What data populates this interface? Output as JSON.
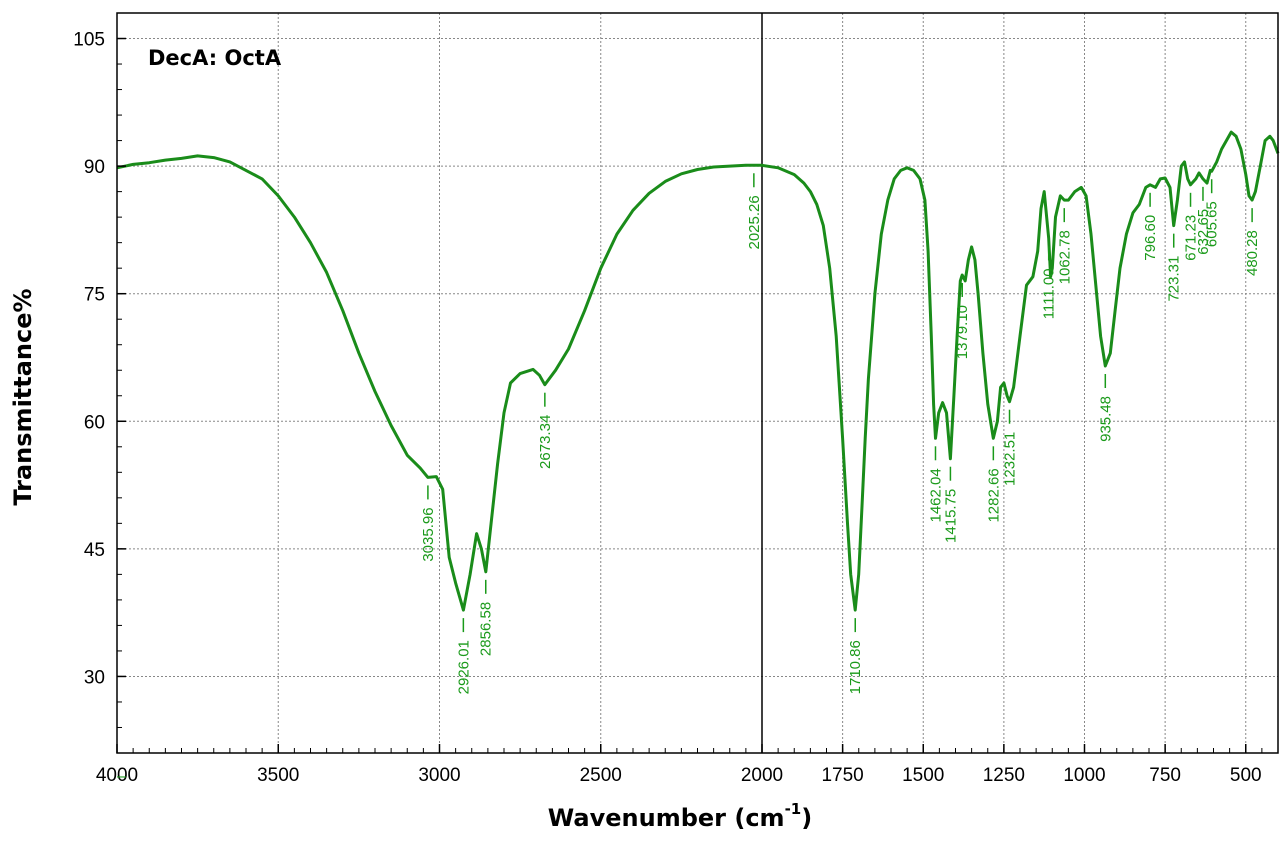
{
  "chart_data": {
    "type": "line",
    "title": "DecA: OctA",
    "xlabel": "Wavenumber (cm",
    "xlabel_sup": "-1",
    "xlabel_tail": ")",
    "ylabel": "Transmittance%",
    "xlim": [
      4000,
      400
    ],
    "ylim": [
      21,
      108
    ],
    "x_reversed": true,
    "x_ticks": [
      "4000",
      "3500",
      "3000",
      "2500",
      "2000",
      "1750",
      "1500",
      "1250",
      "1000",
      "750",
      "500"
    ],
    "y_ticks": [
      "30",
      "45",
      "60",
      "75",
      "90",
      "105"
    ],
    "grid": true,
    "divider_at": 2000,
    "line_color": "#1a8c1a",
    "label_color": "#1a9a1a",
    "legend_marker": "–",
    "series": [
      {
        "points": [
          [
            4000,
            89.8
          ],
          [
            3950,
            90.2
          ],
          [
            3900,
            90.4
          ],
          [
            3850,
            90.7
          ],
          [
            3800,
            90.9
          ],
          [
            3750,
            91.2
          ],
          [
            3700,
            91.0
          ],
          [
            3650,
            90.5
          ],
          [
            3600,
            89.5
          ],
          [
            3550,
            88.5
          ],
          [
            3500,
            86.5
          ],
          [
            3450,
            84.0
          ],
          [
            3400,
            81.0
          ],
          [
            3350,
            77.5
          ],
          [
            3300,
            73.0
          ],
          [
            3250,
            68.0
          ],
          [
            3200,
            63.5
          ],
          [
            3150,
            59.5
          ],
          [
            3100,
            56.0
          ],
          [
            3060,
            54.5
          ],
          [
            3035.96,
            53.4
          ],
          [
            3010,
            53.5
          ],
          [
            2990,
            52.0
          ],
          [
            2970,
            44.0
          ],
          [
            2950,
            41.0
          ],
          [
            2926.01,
            37.8
          ],
          [
            2905,
            42.0
          ],
          [
            2885,
            46.8
          ],
          [
            2870,
            45.0
          ],
          [
            2856.58,
            42.3
          ],
          [
            2840,
            48.0
          ],
          [
            2820,
            55.0
          ],
          [
            2800,
            61.0
          ],
          [
            2780,
            64.5
          ],
          [
            2750,
            65.6
          ],
          [
            2710,
            66.1
          ],
          [
            2690,
            65.4
          ],
          [
            2673.34,
            64.3
          ],
          [
            2640,
            66.0
          ],
          [
            2600,
            68.5
          ],
          [
            2550,
            73.0
          ],
          [
            2500,
            78.0
          ],
          [
            2450,
            82.0
          ],
          [
            2400,
            84.8
          ],
          [
            2350,
            86.8
          ],
          [
            2300,
            88.2
          ],
          [
            2250,
            89.1
          ],
          [
            2200,
            89.6
          ],
          [
            2150,
            89.9
          ],
          [
            2100,
            90.0
          ],
          [
            2050,
            90.1
          ],
          [
            2025.26,
            90.1
          ],
          [
            2000,
            90.1
          ],
          [
            1950,
            89.8
          ],
          [
            1900,
            89.0
          ],
          [
            1870,
            88.0
          ],
          [
            1850,
            87.0
          ],
          [
            1830,
            85.5
          ],
          [
            1810,
            83.0
          ],
          [
            1790,
            78.0
          ],
          [
            1770,
            70.0
          ],
          [
            1750,
            58.0
          ],
          [
            1735,
            48.0
          ],
          [
            1725,
            42.0
          ],
          [
            1710.86,
            37.8
          ],
          [
            1700,
            42.0
          ],
          [
            1690,
            50.0
          ],
          [
            1680,
            58.0
          ],
          [
            1670,
            65.0
          ],
          [
            1650,
            75.0
          ],
          [
            1630,
            82.0
          ],
          [
            1610,
            86.0
          ],
          [
            1590,
            88.5
          ],
          [
            1570,
            89.5
          ],
          [
            1550,
            89.8
          ],
          [
            1530,
            89.5
          ],
          [
            1510,
            88.5
          ],
          [
            1495,
            86.0
          ],
          [
            1485,
            80.0
          ],
          [
            1475,
            70.0
          ],
          [
            1468,
            62.0
          ],
          [
            1462.04,
            58.0
          ],
          [
            1452,
            61.0
          ],
          [
            1440,
            62.2
          ],
          [
            1428,
            61.0
          ],
          [
            1415.75,
            55.6
          ],
          [
            1405,
            63.0
          ],
          [
            1395,
            70.0
          ],
          [
            1385,
            76.5
          ],
          [
            1379.1,
            77.2
          ],
          [
            1370,
            76.5
          ],
          [
            1360,
            79.0
          ],
          [
            1350,
            80.5
          ],
          [
            1340,
            79.0
          ],
          [
            1330,
            75.0
          ],
          [
            1315,
            68.0
          ],
          [
            1300,
            62.0
          ],
          [
            1282.66,
            58.0
          ],
          [
            1270,
            60.0
          ],
          [
            1260,
            64.0
          ],
          [
            1250,
            64.5
          ],
          [
            1240,
            63.0
          ],
          [
            1232.51,
            62.3
          ],
          [
            1220,
            64.0
          ],
          [
            1200,
            70.0
          ],
          [
            1180,
            76.0
          ],
          [
            1160,
            77.0
          ],
          [
            1145,
            80.0
          ],
          [
            1135,
            85.0
          ],
          [
            1125,
            87.0
          ],
          [
            1111.0,
            81.5
          ],
          [
            1105,
            77.0
          ],
          [
            1100,
            78.0
          ],
          [
            1090,
            84.0
          ],
          [
            1075,
            86.5
          ],
          [
            1062.78,
            86.0
          ],
          [
            1050,
            86.0
          ],
          [
            1030,
            87.0
          ],
          [
            1010,
            87.5
          ],
          [
            995,
            86.5
          ],
          [
            980,
            82.0
          ],
          [
            965,
            76.0
          ],
          [
            950,
            70.0
          ],
          [
            935.48,
            66.5
          ],
          [
            920,
            68.0
          ],
          [
            905,
            73.0
          ],
          [
            890,
            78.0
          ],
          [
            870,
            82.0
          ],
          [
            850,
            84.5
          ],
          [
            830,
            85.5
          ],
          [
            810,
            87.5
          ],
          [
            796.6,
            87.8
          ],
          [
            780,
            87.5
          ],
          [
            765,
            88.5
          ],
          [
            750,
            88.6
          ],
          [
            735,
            87.5
          ],
          [
            723.31,
            83.0
          ],
          [
            712,
            86.0
          ],
          [
            700,
            90.0
          ],
          [
            690,
            90.5
          ],
          [
            680,
            88.5
          ],
          [
            671.23,
            87.8
          ],
          [
            655,
            88.5
          ],
          [
            645,
            89.2
          ],
          [
            632.65,
            88.5
          ],
          [
            620,
            88.0
          ],
          [
            610,
            89.5
          ],
          [
            605.65,
            89.4
          ],
          [
            590,
            90.5
          ],
          [
            575,
            92.0
          ],
          [
            560,
            93.0
          ],
          [
            545,
            94.0
          ],
          [
            530,
            93.5
          ],
          [
            515,
            92.0
          ],
          [
            500,
            89.0
          ],
          [
            490,
            86.5
          ],
          [
            480.28,
            86.0
          ],
          [
            470,
            87.0
          ],
          [
            455,
            90.0
          ],
          [
            440,
            93.0
          ],
          [
            425,
            93.5
          ],
          [
            415,
            93.0
          ],
          [
            400,
            91.5
          ]
        ]
      }
    ],
    "peaks": [
      {
        "x": 3035.96,
        "label": "3035.96"
      },
      {
        "x": 2926.01,
        "label": "2926.01"
      },
      {
        "x": 2856.58,
        "label": "2856.58"
      },
      {
        "x": 2673.34,
        "label": "2673.34"
      },
      {
        "x": 2025.26,
        "label": "2025.26"
      },
      {
        "x": 1710.86,
        "label": "1710.86"
      },
      {
        "x": 1462.04,
        "label": "1462.04"
      },
      {
        "x": 1415.75,
        "label": "1415.75"
      },
      {
        "x": 1379.1,
        "label": "1379.10"
      },
      {
        "x": 1282.66,
        "label": "1282.66"
      },
      {
        "x": 1232.51,
        "label": "1232.51"
      },
      {
        "x": 1111.0,
        "label": "1111.00"
      },
      {
        "x": 1062.78,
        "label": "1062.78"
      },
      {
        "x": 935.48,
        "label": "935.48"
      },
      {
        "x": 796.6,
        "label": "796.60"
      },
      {
        "x": 723.31,
        "label": "723.31"
      },
      {
        "x": 671.23,
        "label": "671.23"
      },
      {
        "x": 632.65,
        "label": "632.65"
      },
      {
        "x": 605.65,
        "label": "605.65"
      },
      {
        "x": 480.28,
        "label": "480.28"
      }
    ]
  }
}
